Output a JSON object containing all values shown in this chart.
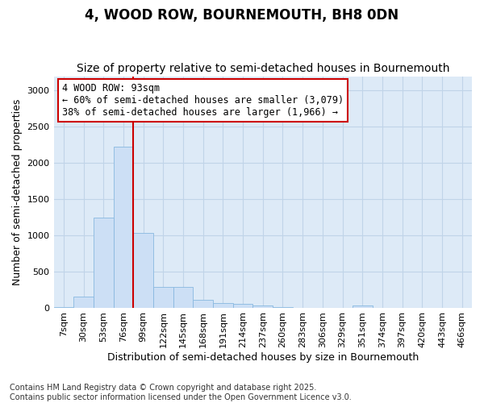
{
  "title": "4, WOOD ROW, BOURNEMOUTH, BH8 0DN",
  "subtitle": "Size of property relative to semi-detached houses in Bournemouth",
  "xlabel": "Distribution of semi-detached houses by size in Bournemouth",
  "ylabel": "Number of semi-detached properties",
  "footnote1": "Contains HM Land Registry data © Crown copyright and database right 2025.",
  "footnote2": "Contains public sector information licensed under the Open Government Licence v3.0.",
  "bar_labels": [
    "7sqm",
    "30sqm",
    "53sqm",
    "76sqm",
    "99sqm",
    "122sqm",
    "145sqm",
    "168sqm",
    "191sqm",
    "214sqm",
    "237sqm",
    "260sqm",
    "283sqm",
    "306sqm",
    "329sqm",
    "351sqm",
    "374sqm",
    "397sqm",
    "420sqm",
    "443sqm",
    "466sqm"
  ],
  "bar_values": [
    10,
    150,
    1240,
    2220,
    1030,
    290,
    290,
    110,
    60,
    55,
    30,
    8,
    0,
    0,
    0,
    30,
    0,
    0,
    0,
    0,
    0
  ],
  "bar_color": "#ccdff5",
  "bar_edge_color": "#88b8e0",
  "grid_color": "#c0d4e8",
  "background_color": "#ddeaf7",
  "property_line_color": "#cc0000",
  "annotation_title": "4 WOOD ROW: 93sqm",
  "annotation_line1": "← 60% of semi-detached houses are smaller (3,079)",
  "annotation_line2": "38% of semi-detached houses are larger (1,966) →",
  "annotation_box_facecolor": "#ffffff",
  "annotation_box_edgecolor": "#cc0000",
  "ylim": [
    0,
    3200
  ],
  "yticks": [
    0,
    500,
    1000,
    1500,
    2000,
    2500,
    3000
  ],
  "title_fontsize": 12,
  "subtitle_fontsize": 10,
  "axis_label_fontsize": 9,
  "tick_fontsize": 8,
  "annotation_fontsize": 8.5,
  "footnote_fontsize": 7
}
